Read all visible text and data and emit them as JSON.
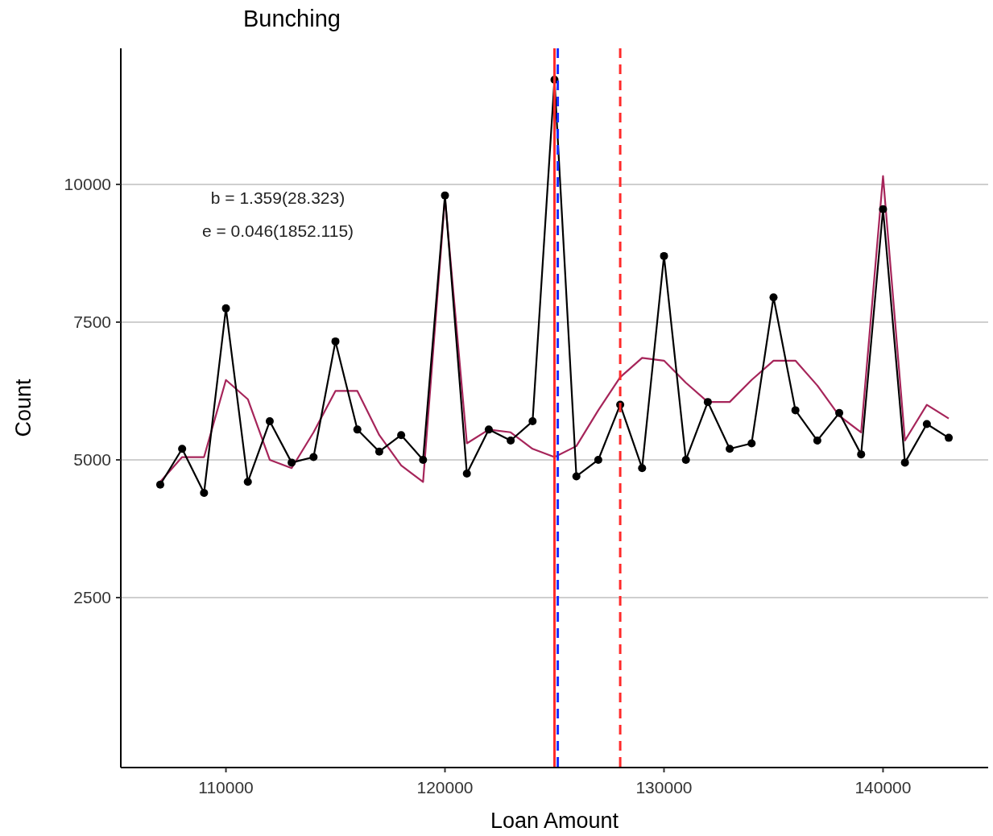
{
  "chart_data": {
    "type": "line",
    "title": "Bunching",
    "xlabel": "Loan Amount",
    "ylabel": "Count",
    "x": [
      107000,
      108000,
      109000,
      110000,
      111000,
      112000,
      113000,
      114000,
      115000,
      116000,
      117000,
      118000,
      119000,
      120000,
      121000,
      122000,
      123000,
      124000,
      125000,
      126000,
      127000,
      128000,
      129000,
      130000,
      131000,
      132000,
      133000,
      134000,
      135000,
      136000,
      137000,
      138000,
      139000,
      140000,
      141000,
      142000,
      143000
    ],
    "series": [
      {
        "color": "#a6255a",
        "marker": "none",
        "values": [
          4600,
          5050,
          5050,
          6450,
          6100,
          5000,
          4850,
          5500,
          6250,
          6250,
          5450,
          4900,
          4600,
          9750,
          5300,
          5550,
          5500,
          5200,
          5050,
          5250,
          5900,
          6500,
          6850,
          6800,
          6400,
          6050,
          6050,
          6450,
          6800,
          6800,
          6350,
          5800,
          5500,
          10150,
          5350,
          6000,
          5750
        ]
      },
      {
        "color": "#000000",
        "marker": "circle",
        "values": [
          4550,
          5200,
          4400,
          7750,
          4600,
          5700,
          4950,
          5050,
          7150,
          5550,
          5150,
          5450,
          5000,
          9800,
          4750,
          5550,
          5350,
          5700,
          11900,
          4700,
          5000,
          6000,
          4850,
          8700,
          5000,
          6050,
          5200,
          5300,
          7950,
          5900,
          5350,
          5850,
          5100,
          9550,
          4950,
          5650,
          5400
        ]
      }
    ],
    "xlim": [
      105200,
      144800
    ],
    "ylim": [
      -585,
      12470
    ],
    "xticks": [
      110000,
      120000,
      130000,
      140000
    ],
    "yticks": [
      2500,
      5000,
      7500,
      10000
    ],
    "grid": "y",
    "ref_lines": [
      {
        "axis": "x",
        "value": 125000,
        "color": "#ff2a2a",
        "line_style": "solid"
      },
      {
        "axis": "x",
        "value": 125150,
        "color": "#1a2cff",
        "line_style": "dashed"
      },
      {
        "axis": "x",
        "value": 128000,
        "color": "#ff2a2a",
        "line_style": "dashed"
      }
    ],
    "annotations": [
      "b = 1.359(28.323)",
      "e = 0.046(1852.115)"
    ]
  }
}
